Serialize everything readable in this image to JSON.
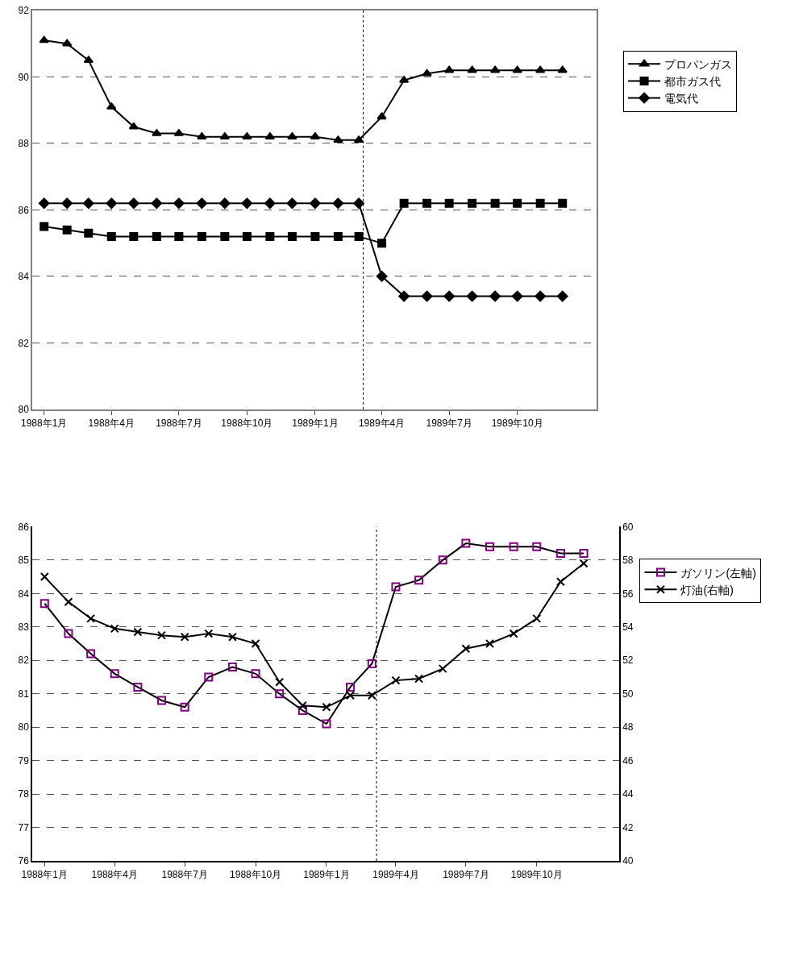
{
  "chart_data": [
    {
      "type": "line",
      "x": [
        "1988-01",
        "1988-02",
        "1988-03",
        "1988-04",
        "1988-05",
        "1988-06",
        "1988-07",
        "1988-08",
        "1988-09",
        "1988-10",
        "1988-11",
        "1988-12",
        "1989-01",
        "1989-02",
        "1989-03",
        "1989-04",
        "1989-05",
        "1989-06",
        "1989-07",
        "1989-08",
        "1989-09",
        "1989-10",
        "1989-11",
        "1989-12"
      ],
      "series": [
        {
          "name": "プロパンガス",
          "color": "#000000",
          "marker": "triangle",
          "values": [
            91.1,
            91.0,
            90.5,
            89.1,
            88.5,
            88.3,
            88.3,
            88.2,
            88.2,
            88.2,
            88.2,
            88.2,
            88.2,
            88.1,
            88.1,
            88.8,
            89.9,
            90.1,
            90.2,
            90.2,
            90.2,
            90.2,
            90.2,
            90.2
          ]
        },
        {
          "name": "都市ガス代",
          "color": "#000000",
          "marker": "square",
          "values": [
            85.5,
            85.4,
            85.3,
            85.2,
            85.2,
            85.2,
            85.2,
            85.2,
            85.2,
            85.2,
            85.2,
            85.2,
            85.2,
            85.2,
            85.2,
            85.0,
            86.2,
            86.2,
            86.2,
            86.2,
            86.2,
            86.2,
            86.2,
            86.2
          ]
        },
        {
          "name": "電気代",
          "color": "#000000",
          "marker": "diamond",
          "values": [
            86.2,
            86.2,
            86.2,
            86.2,
            86.2,
            86.2,
            86.2,
            86.2,
            86.2,
            86.2,
            86.2,
            86.2,
            86.2,
            86.2,
            86.2,
            84.0,
            83.4,
            83.4,
            83.4,
            83.4,
            83.4,
            83.4,
            83.4,
            83.4
          ]
        }
      ],
      "xlim": [
        "1987-12-16",
        "1990-01-16"
      ],
      "xticks": [
        {
          "value": "1988-01",
          "label": "1988年1月"
        },
        {
          "value": "1988-04",
          "label": "1988年4月"
        },
        {
          "value": "1988-07",
          "label": "1988年7月"
        },
        {
          "value": "1988-10",
          "label": "1988年10月"
        },
        {
          "value": "1989-01",
          "label": "1989年1月"
        },
        {
          "value": "1989-04",
          "label": "1989年4月"
        },
        {
          "value": "1989-07",
          "label": "1989年7月"
        },
        {
          "value": "1989-10",
          "label": "1989年10月"
        }
      ],
      "ylim": [
        80,
        92
      ],
      "yticks": [
        80,
        82,
        84,
        86,
        88,
        90,
        92
      ],
      "ref_lines": [
        {
          "axis": "x",
          "value": "1989-03-07",
          "line_style": "dotted",
          "color": "#000000"
        }
      ],
      "grid": "y",
      "legend": "right",
      "line_style": "solid"
    },
    {
      "type": "line",
      "x": [
        "1988-01",
        "1988-02",
        "1988-03",
        "1988-04",
        "1988-05",
        "1988-06",
        "1988-07",
        "1988-08",
        "1988-09",
        "1988-10",
        "1988-11",
        "1988-12",
        "1989-01",
        "1989-02",
        "1989-03",
        "1989-04",
        "1989-05",
        "1989-06",
        "1989-07",
        "1989-08",
        "1989-09",
        "1989-10",
        "1989-11",
        "1989-12"
      ],
      "series": [
        {
          "name": "ガソリン(左軸)",
          "color": "#800080",
          "marker": "square",
          "values": [
            83.7,
            82.8,
            82.2,
            81.6,
            81.2,
            80.8,
            80.6,
            81.5,
            81.8,
            81.6,
            81.0,
            80.5,
            80.1,
            81.2,
            81.9,
            84.2,
            84.4,
            85.0,
            85.5,
            85.4,
            85.4,
            85.4,
            85.2,
            85.2
          ]
        },
        {
          "name": "灯油(右軸)",
          "color": "#000000",
          "marker": "cross",
          "axis": "y2",
          "values": [
            57.0,
            55.5,
            54.5,
            53.9,
            53.7,
            53.5,
            53.4,
            53.6,
            53.4,
            53.0,
            50.7,
            49.3,
            49.2,
            49.9,
            49.9,
            50.8,
            50.9,
            51.5,
            52.7,
            53.0,
            53.6,
            54.5,
            56.7,
            57.8
          ]
        }
      ],
      "xlim": [
        "1987-12-16",
        "1990-01-16"
      ],
      "xticks": [
        {
          "value": "1988-01",
          "label": "1988年1月"
        },
        {
          "value": "1988-04",
          "label": "1988年4月"
        },
        {
          "value": "1988-07",
          "label": "1988年7月"
        },
        {
          "value": "1988-10",
          "label": "1988年10月"
        },
        {
          "value": "1989-01",
          "label": "1989年1月"
        },
        {
          "value": "1989-04",
          "label": "1989年4月"
        },
        {
          "value": "1989-07",
          "label": "1989年7月"
        },
        {
          "value": "1989-10",
          "label": "1989年10月"
        }
      ],
      "ylim": [
        76,
        86
      ],
      "yticks": [
        76,
        77,
        78,
        79,
        80,
        81,
        82,
        83,
        84,
        85,
        86
      ],
      "y2lim": [
        40,
        60
      ],
      "y2ticks": [
        40,
        42,
        44,
        46,
        48,
        50,
        52,
        54,
        56,
        58,
        60
      ],
      "ref_lines": [
        {
          "axis": "x",
          "value": "1989-03-07",
          "line_style": "dotted",
          "color": "#000000"
        }
      ],
      "grid": "y",
      "legend": "right",
      "line_style": "solid"
    }
  ]
}
